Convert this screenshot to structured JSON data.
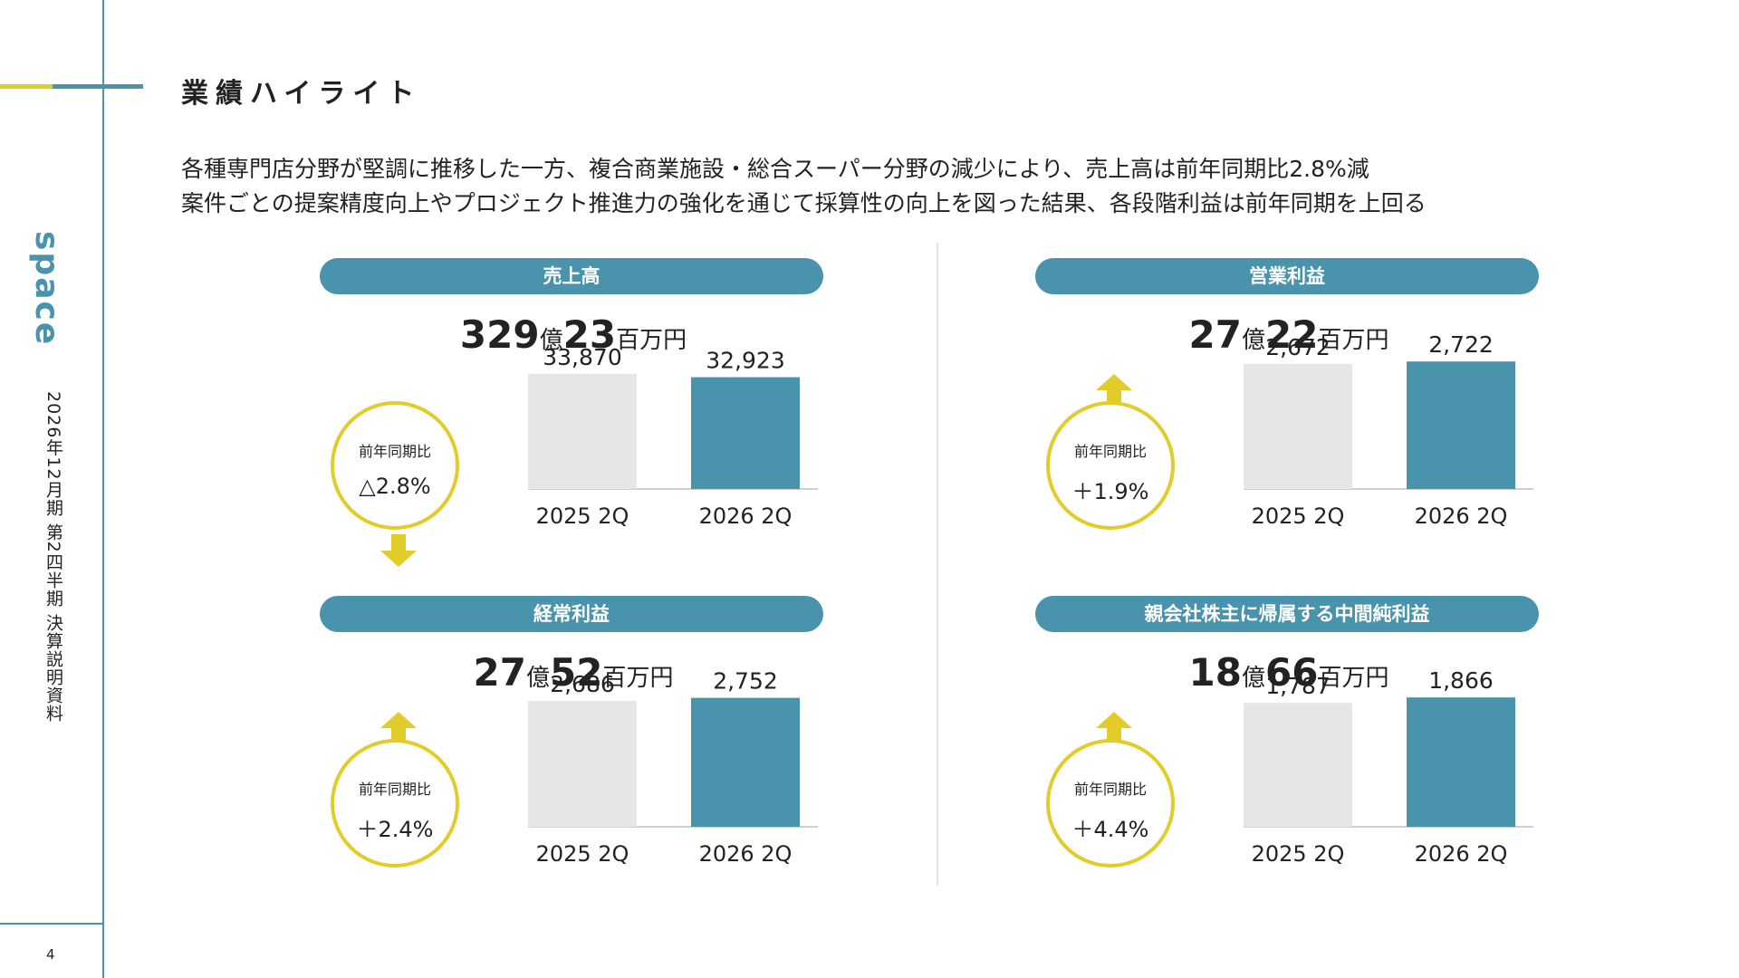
{
  "page": {
    "title": "業績ハイライト",
    "brand": "space",
    "vertical_subtitle": "2026年12月期 第2四半期 決算説明資料",
    "page_number": "4",
    "summary_lines": [
      "各種専門店分野が堅調に推移した一方、複合商業施設・総合スーパー分野の減少により、売上高は前年同期比2.8%減",
      "案件ごとの提案精度向上やプロジェクト推進力の強化を通じて採算性の向上を図った結果、各段階利益は前年同期を上回る"
    ]
  },
  "panels": [
    {
      "title": "売上高",
      "headline": {
        "a": "329",
        "a_unit": "億",
        "b": "23",
        "b_unit": "百万円"
      },
      "compare_caption": "前年同期比",
      "compare_value": "△2.8%",
      "direction": "down"
    },
    {
      "title": "営業利益",
      "headline": {
        "a": "27",
        "a_unit": "億",
        "b": "22",
        "b_unit": "百万円"
      },
      "compare_caption": "前年同期比",
      "compare_value": "＋1.9%",
      "direction": "up"
    },
    {
      "title": "経常利益",
      "headline": {
        "a": "27",
        "a_unit": "億",
        "b": "52",
        "b_unit": "百万円"
      },
      "compare_caption": "前年同期比",
      "compare_value": "＋2.4%",
      "direction": "up"
    },
    {
      "title": "親会社株主に帰属する中間純利益",
      "headline": {
        "a": "18",
        "a_unit": "億",
        "b": "66",
        "b_unit": "百万円"
      },
      "compare_caption": "前年同期比",
      "compare_value": "＋4.4%",
      "direction": "up"
    }
  ],
  "colors": {
    "accent": "#4a93ad",
    "highlight": "#e2cc2a",
    "prior_bar": "#e6e6e6",
    "current_bar": "#4a93ad"
  },
  "chart_data": [
    {
      "type": "bar",
      "title": "売上高",
      "categories": [
        "2025 2Q",
        "2026 2Q"
      ],
      "values": [
        33870,
        32923
      ],
      "value_labels": [
        "33,870",
        "32,923"
      ],
      "ylim": [
        0,
        40000
      ]
    },
    {
      "type": "bar",
      "title": "営業利益",
      "categories": [
        "2025 2Q",
        "2026 2Q"
      ],
      "values": [
        2672,
        2722
      ],
      "value_labels": [
        "2,672",
        "2,722"
      ],
      "ylim": [
        0,
        2900
      ]
    },
    {
      "type": "bar",
      "title": "経常利益",
      "categories": [
        "2025 2Q",
        "2026 2Q"
      ],
      "values": [
        2686,
        2752
      ],
      "value_labels": [
        "2,686",
        "2,752"
      ],
      "ylim": [
        0,
        2900
      ]
    },
    {
      "type": "bar",
      "title": "親会社株主に帰属する中間純利益",
      "categories": [
        "2025 2Q",
        "2026 2Q"
      ],
      "values": [
        1787,
        1866
      ],
      "value_labels": [
        "1,787",
        "1,866"
      ],
      "ylim": [
        0,
        1960
      ]
    }
  ]
}
